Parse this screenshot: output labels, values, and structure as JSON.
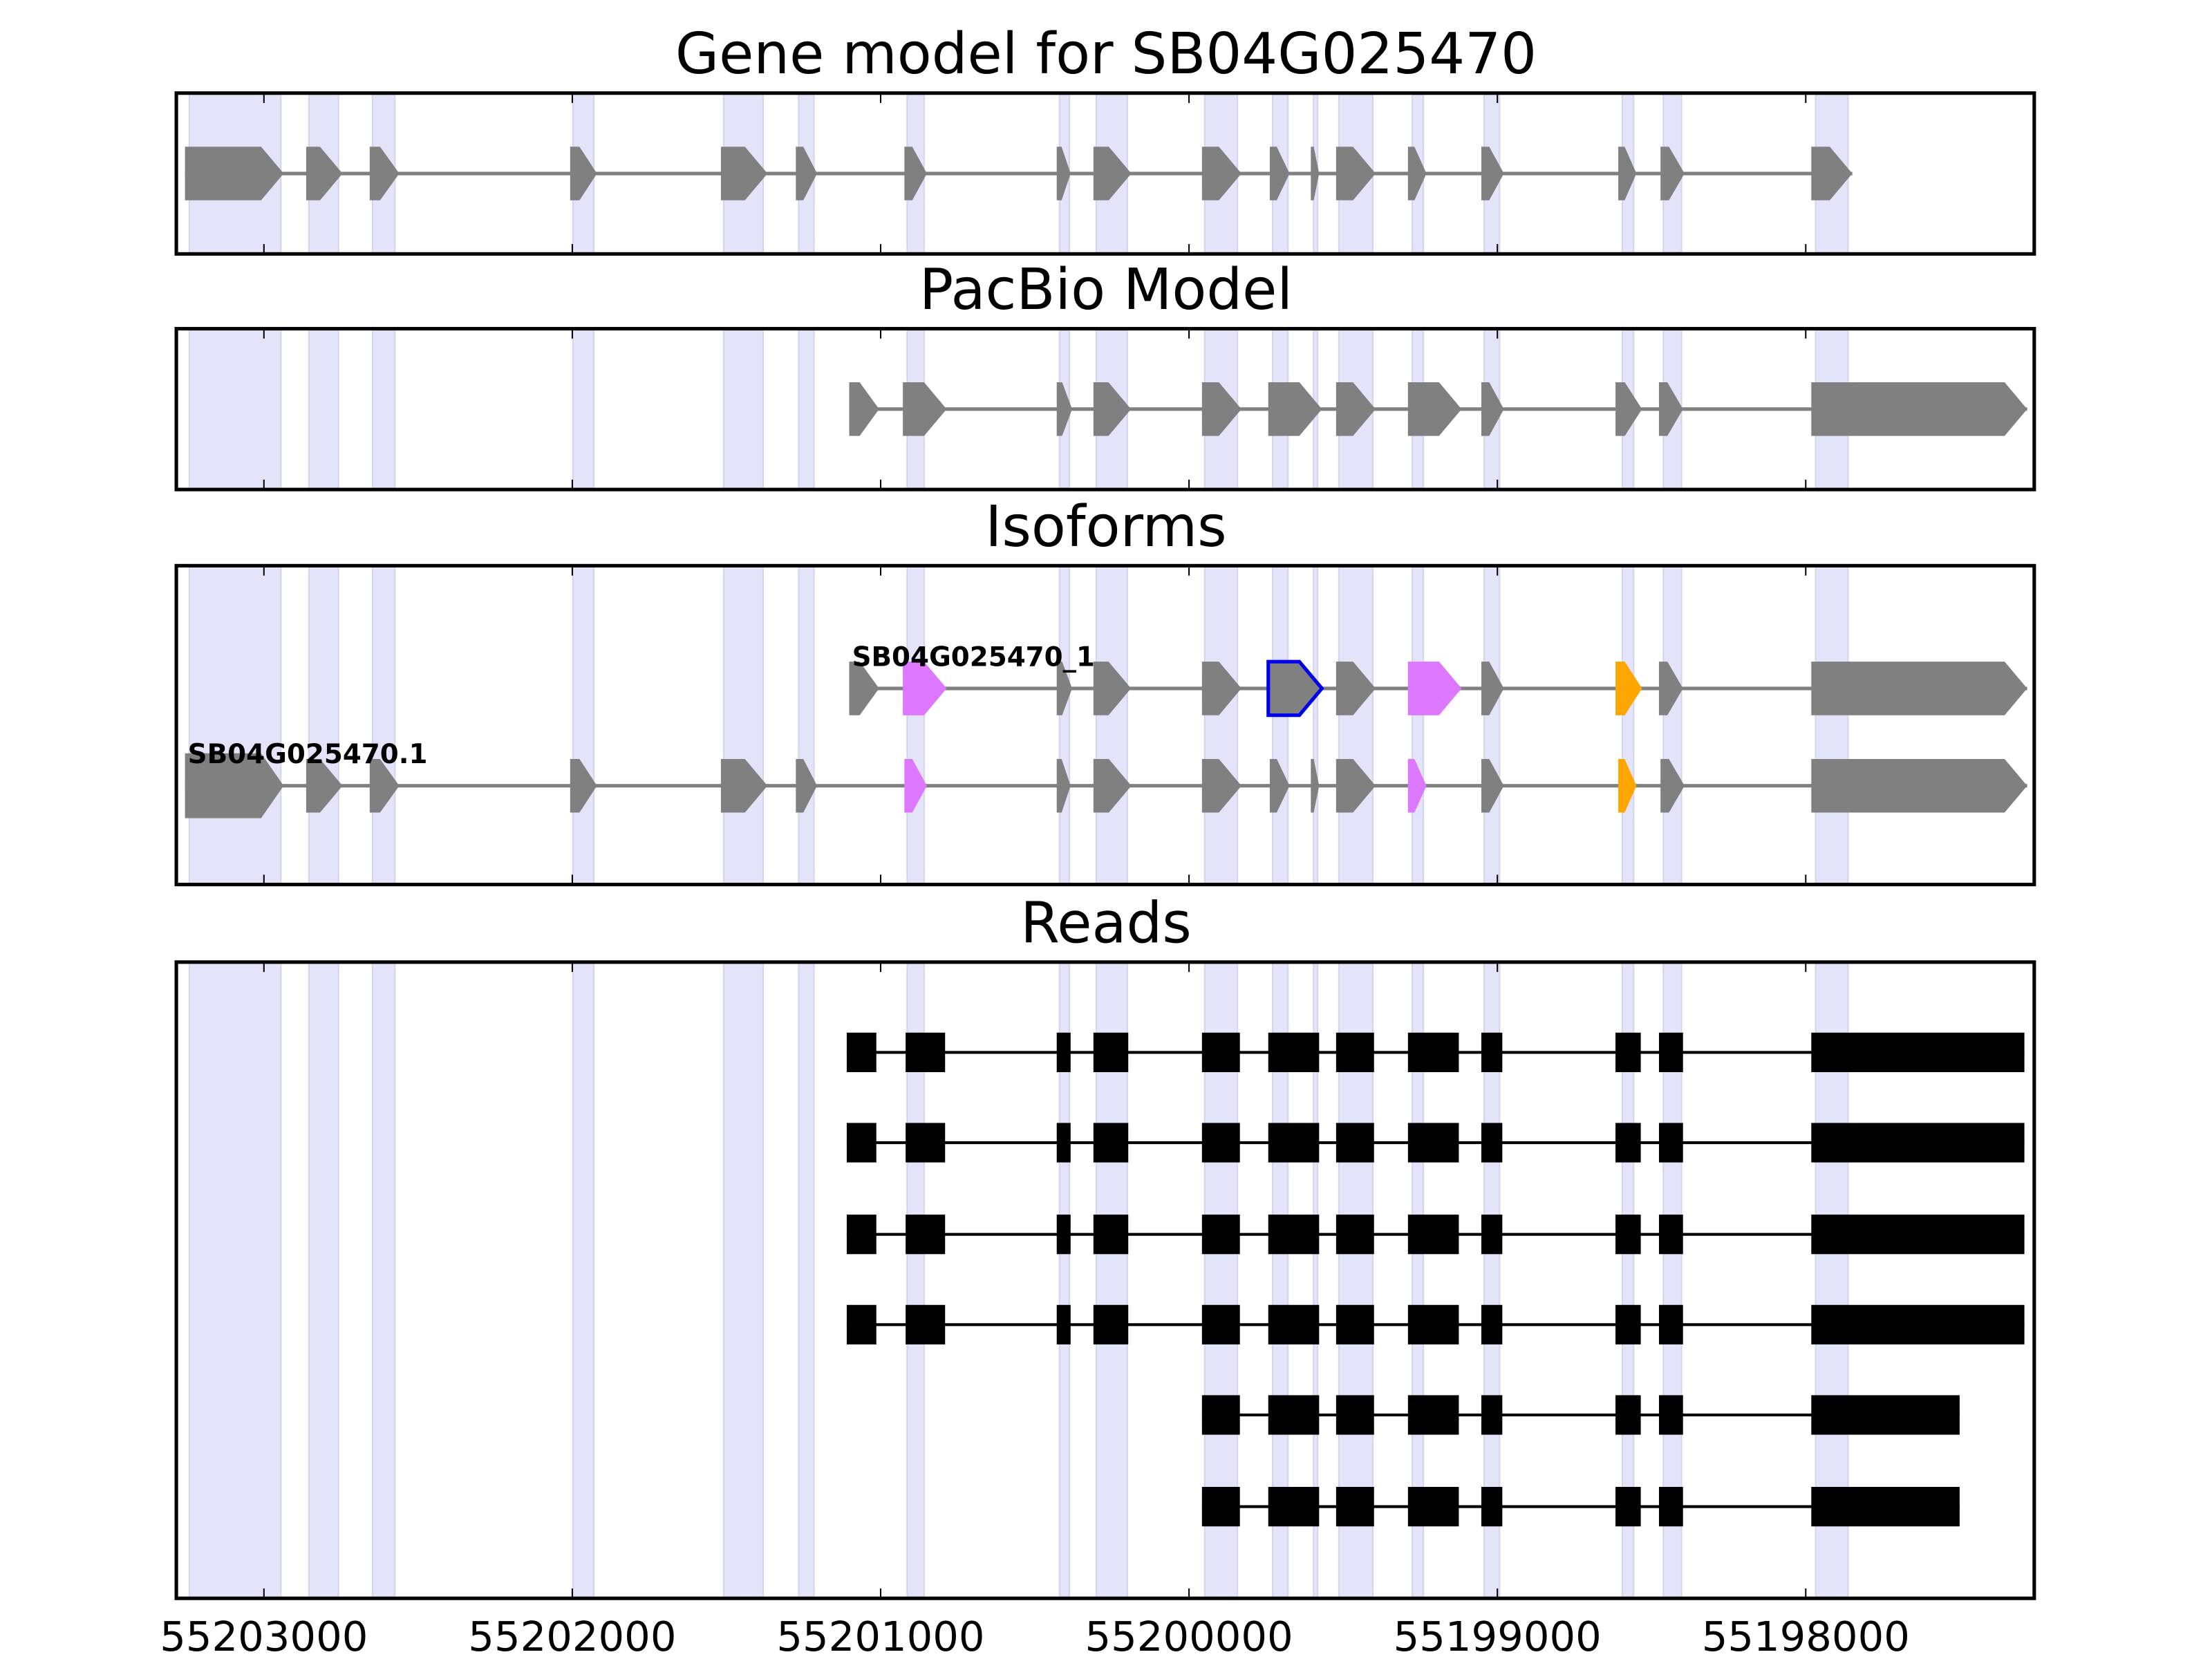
{
  "chart_data": {
    "type": "gene-track",
    "x_axis": {
      "reversed": true,
      "xlim": [
        55203284,
        55197259
      ],
      "ticks": [
        55203000,
        55202000,
        55201000,
        55200000,
        55199000,
        55198000
      ],
      "tick_labels": [
        "55203000",
        "55202000",
        "55201000",
        "55200000",
        "55199000",
        "55198000"
      ]
    },
    "colors": {
      "exon": "#808080",
      "intron": "#808080",
      "band": "#e3e3fa",
      "band_edge": "#d4d4ee",
      "violet": "#dd77ff",
      "orange": "#ffa500",
      "outline": "#0000ee",
      "read": "#000000"
    },
    "bands": [
      [
        55203242,
        55202945
      ],
      [
        55202854,
        55202758
      ],
      [
        55202648,
        55202575
      ],
      [
        55201998,
        55201930
      ],
      [
        55201509,
        55201381
      ],
      [
        55201266,
        55201216
      ],
      [
        55200914,
        55200859
      ],
      [
        55200420,
        55200388
      ],
      [
        55200301,
        55200200
      ],
      [
        55199949,
        55199843
      ],
      [
        55199729,
        55199679
      ],
      [
        55199596,
        55199583
      ],
      [
        55199514,
        55199404
      ],
      [
        55199276,
        55199240
      ],
      [
        55199043,
        55198993
      ],
      [
        55198595,
        55198558
      ],
      [
        55198462,
        55198403
      ],
      [
        55197968,
        55197863
      ]
    ],
    "panels": [
      {
        "title": "Gene model for SB04G025470",
        "kind": "model",
        "rows": [
          {
            "label": "",
            "exons": [
              [
                55203256,
                55202936
              ],
              [
                55202863,
                55202745
              ],
              [
                55202657,
                55202561
              ],
              [
                55202007,
                55201920
              ],
              [
                55201518,
                55201367
              ],
              [
                55201275,
                55201206
              ],
              [
                55200923,
                55200850
              ],
              [
                55200429,
                55200384
              ],
              [
                55200310,
                55200187
              ],
              [
                55199958,
                55199830
              ],
              [
                55199738,
                55199674
              ],
              [
                55199605,
                55199578
              ],
              [
                55199523,
                55199395
              ],
              [
                55199290,
                55199230
              ],
              [
                55199052,
                55198979
              ],
              [
                55198608,
                55198549
              ],
              [
                55198471,
                55198393
              ],
              [
                55197982,
                55197849
              ]
            ],
            "colors": []
          }
        ]
      },
      {
        "title": "PacBio Model",
        "kind": "model",
        "rows": [
          {
            "label": "",
            "exons": [
              [
                55201102,
                55201005
              ],
              [
                55200928,
                55200786
              ],
              [
                55200429,
                55200379
              ],
              [
                55200310,
                55200188
              ],
              [
                55199958,
                55199830
              ],
              [
                55199743,
                55199569
              ],
              [
                55199523,
                55199395
              ],
              [
                55199290,
                55199116
              ],
              [
                55199052,
                55198979
              ],
              [
                55198617,
                55198531
              ],
              [
                55198476,
                55198398
              ],
              [
                55197982,
                55197282
              ]
            ],
            "colors": []
          }
        ]
      },
      {
        "title": "Isoforms",
        "kind": "model",
        "rows": [
          {
            "label": "SB04G025470_1",
            "exons": [
              [
                55201102,
                55201005
              ],
              [
                55200928,
                55200786
              ],
              [
                55200429,
                55200379
              ],
              [
                55200310,
                55200188
              ],
              [
                55199958,
                55199830
              ],
              [
                55199743,
                55199569
              ],
              [
                55199523,
                55199395
              ],
              [
                55199290,
                55199116
              ],
              [
                55199052,
                55198979
              ],
              [
                55198617,
                55198531
              ],
              [
                55198476,
                55198398
              ],
              [
                55197982,
                55197282
              ]
            ],
            "colors": [
              "",
              "violet",
              "",
              "",
              "",
              "outline",
              "",
              "violet",
              "",
              "orange",
              "",
              ""
            ]
          },
          {
            "label": "SB04G025470.1",
            "exons": [
              [
                55203256,
                55202936
              ],
              [
                55202863,
                55202745
              ],
              [
                55202657,
                55202561
              ],
              [
                55202007,
                55201920
              ],
              [
                55201518,
                55201367
              ],
              [
                55201275,
                55201206
              ],
              [
                55200923,
                55200850
              ],
              [
                55200429,
                55200384
              ],
              [
                55200310,
                55200187
              ],
              [
                55199958,
                55199830
              ],
              [
                55199738,
                55199674
              ],
              [
                55199605,
                55199578
              ],
              [
                55199523,
                55199395
              ],
              [
                55199290,
                55199230
              ],
              [
                55199052,
                55198979
              ],
              [
                55198608,
                55198549
              ],
              [
                55198471,
                55198393
              ],
              [
                55197982,
                55197282
              ]
            ],
            "colors": [
              "",
              "",
              "",
              "",
              "",
              "",
              "violet",
              "",
              "",
              "",
              "",
              "",
              "",
              "violet",
              "",
              "orange",
              "",
              ""
            ]
          }
        ]
      },
      {
        "title": "Reads",
        "kind": "reads",
        "rows": [
          {
            "exons": [
              [
                55201110,
                55201014
              ],
              [
                55200919,
                55200791
              ],
              [
                55200429,
                55200384
              ],
              [
                55200310,
                55200197
              ],
              [
                55199958,
                55199835
              ],
              [
                55199743,
                55199578
              ],
              [
                55199523,
                55199400
              ],
              [
                55199290,
                55199125
              ],
              [
                55199052,
                55198984
              ],
              [
                55198617,
                55198535
              ],
              [
                55198476,
                55198398
              ],
              [
                55197982,
                55197291
              ]
            ]
          },
          {
            "exons": [
              [
                55201110,
                55201014
              ],
              [
                55200919,
                55200791
              ],
              [
                55200429,
                55200384
              ],
              [
                55200310,
                55200197
              ],
              [
                55199958,
                55199835
              ],
              [
                55199743,
                55199578
              ],
              [
                55199523,
                55199400
              ],
              [
                55199290,
                55199125
              ],
              [
                55199052,
                55198984
              ],
              [
                55198617,
                55198535
              ],
              [
                55198476,
                55198398
              ],
              [
                55197982,
                55197291
              ]
            ]
          },
          {
            "exons": [
              [
                55201110,
                55201014
              ],
              [
                55200919,
                55200791
              ],
              [
                55200429,
                55200384
              ],
              [
                55200310,
                55200197
              ],
              [
                55199958,
                55199835
              ],
              [
                55199743,
                55199578
              ],
              [
                55199523,
                55199400
              ],
              [
                55199290,
                55199125
              ],
              [
                55199052,
                55198984
              ],
              [
                55198617,
                55198535
              ],
              [
                55198476,
                55198398
              ],
              [
                55197982,
                55197291
              ]
            ]
          },
          {
            "exons": [
              [
                55201110,
                55201014
              ],
              [
                55200919,
                55200791
              ],
              [
                55200429,
                55200384
              ],
              [
                55200310,
                55200197
              ],
              [
                55199958,
                55199835
              ],
              [
                55199743,
                55199578
              ],
              [
                55199523,
                55199400
              ],
              [
                55199290,
                55199125
              ],
              [
                55199052,
                55198984
              ],
              [
                55198617,
                55198535
              ],
              [
                55198476,
                55198398
              ],
              [
                55197982,
                55197291
              ]
            ]
          },
          {
            "exons": [
              [
                55199958,
                55199835
              ],
              [
                55199743,
                55199578
              ],
              [
                55199523,
                55199400
              ],
              [
                55199290,
                55199125
              ],
              [
                55199052,
                55198984
              ],
              [
                55198617,
                55198535
              ],
              [
                55198476,
                55198398
              ],
              [
                55197982,
                55197501
              ]
            ]
          },
          {
            "exons": [
              [
                55199958,
                55199835
              ],
              [
                55199743,
                55199578
              ],
              [
                55199523,
                55199400
              ],
              [
                55199290,
                55199125
              ],
              [
                55199052,
                55198984
              ],
              [
                55198617,
                55198535
              ],
              [
                55198476,
                55198398
              ],
              [
                55197982,
                55197501
              ]
            ]
          }
        ]
      }
    ]
  }
}
